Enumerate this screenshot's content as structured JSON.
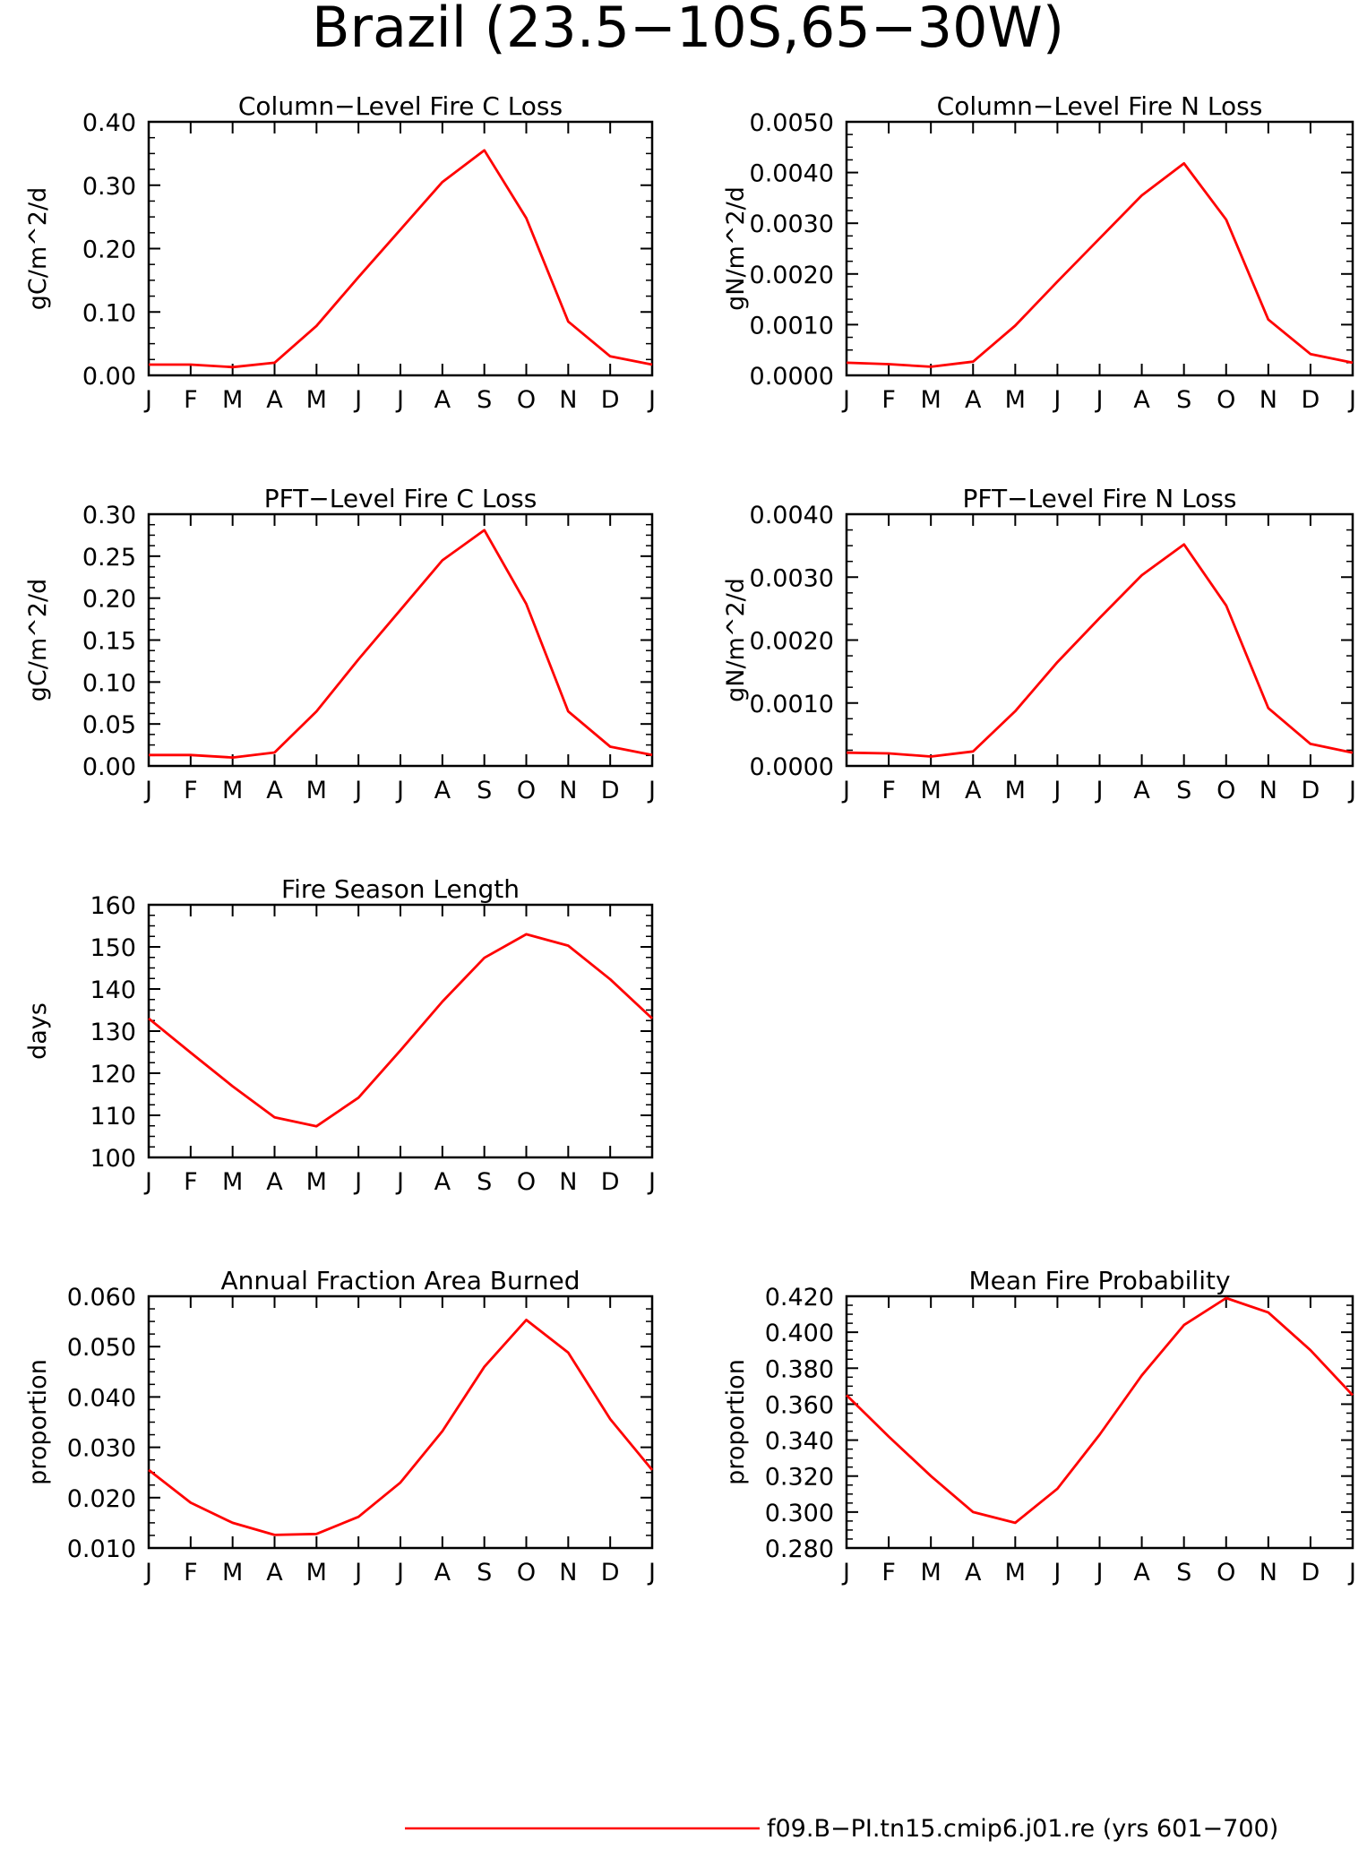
{
  "page_title": "Brazil (23.5−10S,65−30W)",
  "legend": {
    "label": "f09.B−PI.tn15.cmip6.j01.re (yrs 601−700)",
    "color": "#ff0000"
  },
  "chart_data": [
    {
      "id": "col-c",
      "type": "line",
      "title": "Column−Level Fire C Loss",
      "ylabel": "gC/m^2/d",
      "categories": [
        "J",
        "F",
        "M",
        "A",
        "M",
        "J",
        "J",
        "A",
        "S",
        "O",
        "N",
        "D",
        "J"
      ],
      "ylim": [
        0,
        0.4
      ],
      "yticks": [
        "0.00",
        "0.10",
        "0.20",
        "0.30",
        "0.40"
      ],
      "grid": false,
      "series": [
        {
          "color": "#ff0000",
          "values": [
            0.017,
            0.017,
            0.013,
            0.02,
            0.078,
            0.155,
            0.23,
            0.305,
            0.355,
            0.248,
            0.085,
            0.03,
            0.017
          ]
        }
      ]
    },
    {
      "id": "col-n",
      "type": "line",
      "title": "Column−Level Fire N Loss",
      "ylabel": "gN/m^2/d",
      "categories": [
        "J",
        "F",
        "M",
        "A",
        "M",
        "J",
        "J",
        "A",
        "S",
        "O",
        "N",
        "D",
        "J"
      ],
      "ylim": [
        0,
        0.005
      ],
      "yticks": [
        "0.0000",
        "0.0010",
        "0.0020",
        "0.0030",
        "0.0040",
        "0.0050"
      ],
      "grid": false,
      "series": [
        {
          "color": "#ff0000",
          "values": [
            0.00025,
            0.00022,
            0.00017,
            0.00027,
            0.00098,
            0.00185,
            0.0027,
            0.00355,
            0.00418,
            0.00307,
            0.0011,
            0.00042,
            0.00025
          ]
        }
      ]
    },
    {
      "id": "pft-c",
      "type": "line",
      "title": "PFT−Level Fire C Loss",
      "ylabel": "gC/m^2/d",
      "categories": [
        "J",
        "F",
        "M",
        "A",
        "M",
        "J",
        "J",
        "A",
        "S",
        "O",
        "N",
        "D",
        "J"
      ],
      "ylim": [
        0,
        0.3
      ],
      "yticks": [
        "0.00",
        "0.05",
        "0.10",
        "0.15",
        "0.20",
        "0.25",
        "0.30"
      ],
      "grid": false,
      "series": [
        {
          "color": "#ff0000",
          "values": [
            0.013,
            0.013,
            0.01,
            0.016,
            0.065,
            0.127,
            0.186,
            0.245,
            0.281,
            0.193,
            0.065,
            0.023,
            0.013
          ]
        }
      ]
    },
    {
      "id": "pft-n",
      "type": "line",
      "title": "PFT−Level Fire N Loss",
      "ylabel": "gN/m^2/d",
      "categories": [
        "J",
        "F",
        "M",
        "A",
        "M",
        "J",
        "J",
        "A",
        "S",
        "O",
        "N",
        "D",
        "J"
      ],
      "ylim": [
        0,
        0.004
      ],
      "yticks": [
        "0.0000",
        "0.0010",
        "0.0020",
        "0.0030",
        "0.0040"
      ],
      "grid": false,
      "series": [
        {
          "color": "#ff0000",
          "values": [
            0.00021,
            0.0002,
            0.00015,
            0.00023,
            0.00087,
            0.00165,
            0.00235,
            0.00303,
            0.00352,
            0.00255,
            0.00092,
            0.00035,
            0.00021
          ]
        }
      ]
    },
    {
      "id": "season",
      "type": "line",
      "title": "Fire Season Length",
      "ylabel": "days",
      "categories": [
        "J",
        "F",
        "M",
        "A",
        "M",
        "J",
        "J",
        "A",
        "S",
        "O",
        "N",
        "D",
        "J"
      ],
      "ylim": [
        100,
        160
      ],
      "yticks": [
        "100",
        "110",
        "120",
        "130",
        "140",
        "150",
        "160"
      ],
      "grid": false,
      "series": [
        {
          "color": "#ff0000",
          "values": [
            133.0,
            124.9,
            116.9,
            109.5,
            107.4,
            114.2,
            125.4,
            137.0,
            147.4,
            153.0,
            150.3,
            142.3,
            133.0
          ]
        }
      ]
    },
    {
      "id": "afab",
      "type": "line",
      "title": "Annual Fraction Area Burned",
      "ylabel": "proportion",
      "categories": [
        "J",
        "F",
        "M",
        "A",
        "M",
        "J",
        "J",
        "A",
        "S",
        "O",
        "N",
        "D",
        "J"
      ],
      "ylim": [
        0.01,
        0.06
      ],
      "yticks": [
        "0.010",
        "0.020",
        "0.030",
        "0.040",
        "0.050",
        "0.060"
      ],
      "grid": false,
      "series": [
        {
          "color": "#ff0000",
          "values": [
            0.0255,
            0.019,
            0.015,
            0.0126,
            0.0128,
            0.0162,
            0.023,
            0.0332,
            0.046,
            0.0553,
            0.0488,
            0.0356,
            0.0255
          ]
        }
      ]
    },
    {
      "id": "mfp",
      "type": "line",
      "title": "Mean Fire Probability",
      "ylabel": "proportion",
      "categories": [
        "J",
        "F",
        "M",
        "A",
        "M",
        "J",
        "J",
        "A",
        "S",
        "O",
        "N",
        "D",
        "J"
      ],
      "ylim": [
        0.28,
        0.42
      ],
      "yticks": [
        "0.280",
        "0.300",
        "0.320",
        "0.340",
        "0.360",
        "0.380",
        "0.400",
        "0.420"
      ],
      "grid": false,
      "series": [
        {
          "color": "#ff0000",
          "values": [
            0.365,
            0.342,
            0.32,
            0.3,
            0.294,
            0.313,
            0.343,
            0.376,
            0.404,
            0.419,
            0.411,
            0.39,
            0.365
          ]
        }
      ]
    }
  ]
}
